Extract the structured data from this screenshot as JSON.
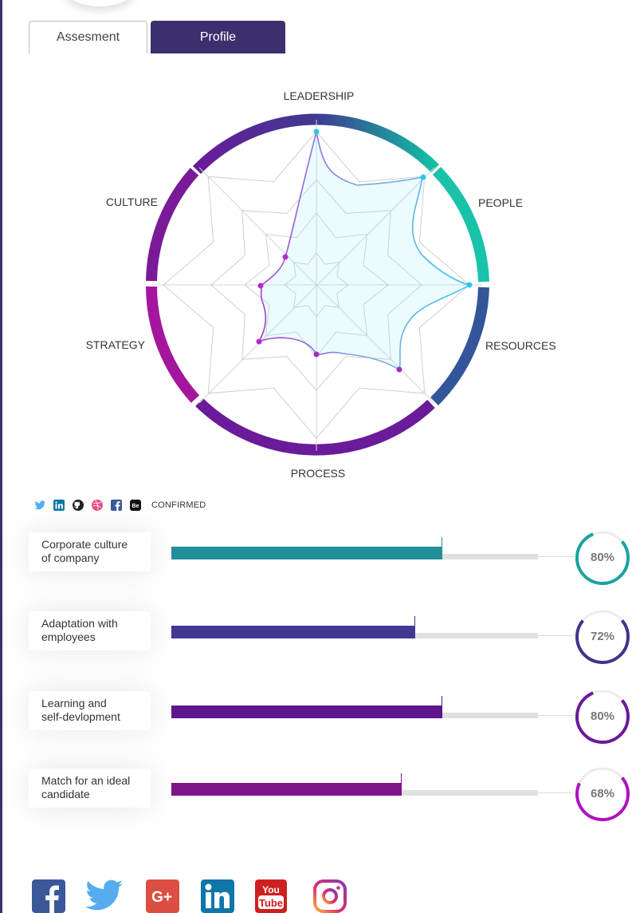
{
  "tabs": [
    {
      "label": "Assesment"
    },
    {
      "label": "Profile"
    }
  ],
  "radar": {
    "axes": [
      "LEADERSHIP",
      "PEOPLE",
      "RESOURCES",
      "PROCESS",
      "STRATEGY",
      "CULTURE"
    ]
  },
  "confirmed_label": "CONFIRMED",
  "mini_icons": [
    "twitter-icon",
    "linkedin-icon",
    "github-icon",
    "dribbble-icon",
    "facebook-icon",
    "behance-icon"
  ],
  "metrics": [
    {
      "label_line1": "Corporate culture",
      "label_line2": "of company",
      "value": 80,
      "display": "80%",
      "color": "#218e9a",
      "ring": "#1aa3a0"
    },
    {
      "label_line1": "Adaptation with",
      "label_line2": "employees",
      "value": 72,
      "display": "72%",
      "color": "#423893",
      "ring": "#3f358a"
    },
    {
      "label_line1": "Learning and",
      "label_line2": "self-devlopment",
      "value": 80,
      "display": "80%",
      "color": "#5e1690",
      "ring": "#6a1b9a"
    },
    {
      "label_line1": "Match for an ideal",
      "label_line2": "candidate",
      "value": 68,
      "display": "68%",
      "color": "#7f1489",
      "ring": "#b010c2"
    }
  ],
  "social_footer": [
    "facebook-icon",
    "twitter-icon",
    "google-plus-icon",
    "linkedin-icon",
    "youtube-icon",
    "instagram-icon"
  ],
  "colors": {
    "brand": "#3d2f6e"
  }
}
